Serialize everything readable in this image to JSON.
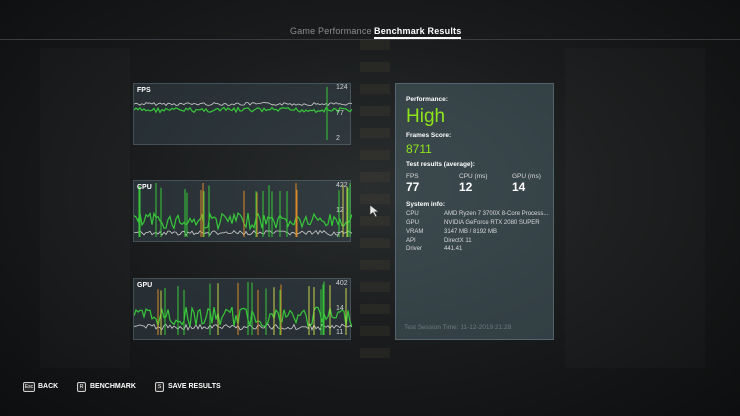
{
  "tabs": [
    {
      "label": "Game Performance",
      "active": false
    },
    {
      "label": "Benchmark Results",
      "active": true
    }
  ],
  "graphs": {
    "fps": {
      "title": "FPS",
      "ticks": [
        "124",
        "77",
        "2"
      ]
    },
    "cpu": {
      "title": "CPU",
      "ticks": [
        "422",
        "12",
        "7"
      ]
    },
    "gpu": {
      "title": "GPU",
      "ticks": [
        "402",
        "14",
        "11"
      ]
    }
  },
  "results": {
    "performance_label": "Performance:",
    "performance_value": "High",
    "score_label": "Frames Score:",
    "score_value": "8711",
    "test_results_label": "Test results (average):",
    "stats": [
      {
        "label": "FPS",
        "value": "77"
      },
      {
        "label": "CPU (ms)",
        "value": "12"
      },
      {
        "label": "GPU (ms)",
        "value": "14"
      }
    ],
    "system_info_label": "System info:",
    "system_info": [
      {
        "key": "CPU",
        "value": "AMD Ryzen 7 3700X 8-Core Process..."
      },
      {
        "key": "GPU",
        "value": "NVIDIA GeForce RTX 2080 SUPER"
      },
      {
        "key": "VRAM",
        "value": "3147 MB / 8192 MB"
      },
      {
        "key": "API",
        "value": "DirectX 11"
      },
      {
        "key": "Driver",
        "value": "441.41"
      }
    ],
    "session_time": "Test Session Time: 11-12-2019 21:28"
  },
  "hints": [
    {
      "key": "Esc",
      "label": "BACK"
    },
    {
      "key": "R",
      "label": "BENCHMARK"
    },
    {
      "key": "S",
      "label": "SAVE RESULTS"
    }
  ],
  "colors": {
    "accent_green": "#8ee61a",
    "line_green": "#37c83a",
    "line_white": "#d0d0d0",
    "spike_yellow": "#c8d24a",
    "spike_orange": "#d88a2a"
  }
}
